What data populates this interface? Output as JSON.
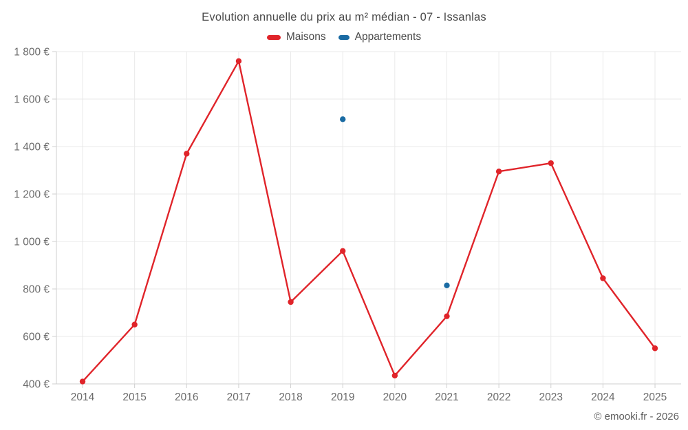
{
  "chart_data": {
    "type": "line",
    "title": "Evolution annuelle du prix au m² médian - 07 - Issanlas",
    "categories": [
      "2014",
      "2015",
      "2016",
      "2017",
      "2018",
      "2019",
      "2020",
      "2021",
      "2022",
      "2023",
      "2024",
      "2025"
    ],
    "series": [
      {
        "name": "Maisons",
        "type": "line",
        "color": "#e0242a",
        "values": [
          410,
          650,
          1370,
          1760,
          745,
          960,
          435,
          685,
          1295,
          1330,
          845,
          550
        ]
      },
      {
        "name": "Appartements",
        "type": "scatter",
        "color": "#1a6ba3",
        "values": [
          null,
          null,
          null,
          null,
          null,
          1515,
          null,
          815,
          null,
          null,
          null,
          null
        ]
      }
    ],
    "xlabel": "",
    "ylabel": "",
    "ylim": [
      400,
      1800
    ],
    "ytick_step": 200,
    "ytick_labels": [
      "400 €",
      "600 €",
      "800 €",
      "1 000 €",
      "1 200 €",
      "1 400 €",
      "1 600 €",
      "1 800 €"
    ],
    "grid": true,
    "legend_position": "top",
    "grid_color": "#e9e9e9",
    "axis_color": "#cfcfcf",
    "label_color": "#6b6b6b"
  },
  "footer": {
    "copyright": "© emooki.fr - 2026"
  }
}
